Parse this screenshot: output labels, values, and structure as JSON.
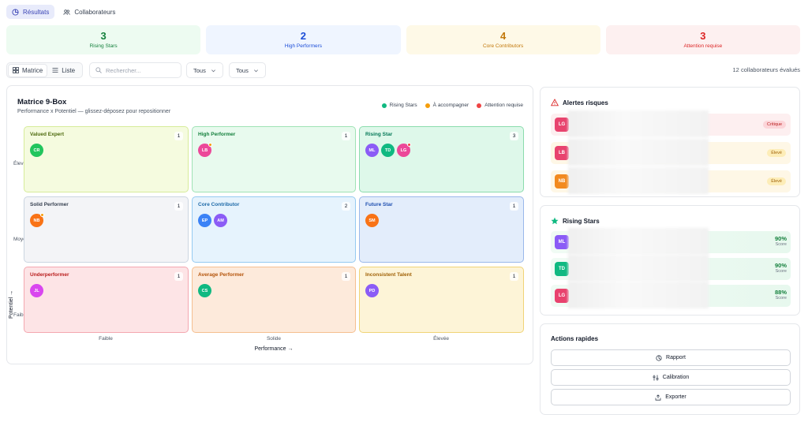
{
  "top_tabs": [
    {
      "label": "Résultats",
      "icon": "chart-icon",
      "active": true
    },
    {
      "label": "Collaborateurs",
      "icon": "users-icon",
      "active": false
    }
  ],
  "stats": [
    {
      "value": "3",
      "label": "Rising Stars",
      "color": "#15803d"
    },
    {
      "value": "2",
      "label": "High Performers",
      "color": "#1d4ed8"
    },
    {
      "value": "4",
      "label": "Core Contributors",
      "color": "#c2780b"
    },
    {
      "value": "3",
      "label": "Attention requise",
      "color": "#dc2626"
    }
  ],
  "toolbar": {
    "view_matrix": "Matrice",
    "view_list": "Liste",
    "search_placeholder": "Rechercher...",
    "filter1": "Tous",
    "filter2": "Tous",
    "count_text": "12 collaborateurs évalués"
  },
  "matrix": {
    "title": "Matrice 9-Box",
    "subtitle": "Performance x Potentiel — glissez-déposez pour repositionner",
    "legend": [
      {
        "label": "Rising Stars",
        "color": "#10b981"
      },
      {
        "label": "À accompagner",
        "color": "#f59e0b"
      },
      {
        "label": "Attention requise",
        "color": "#ef4444"
      }
    ],
    "y_axis_label": "Potentiel →",
    "y_ticks": [
      "Élevé",
      "Moyen",
      "Faible"
    ],
    "x_axis_label": "Performance →",
    "x_ticks": [
      "Faible",
      "Solide",
      "Élevée"
    ],
    "cells": [
      {
        "name": "Valued Expert",
        "count": "1",
        "style": "c-lime",
        "avatars": [
          {
            "initials": "CR",
            "color": "#22c55e"
          }
        ]
      },
      {
        "name": "High Performer",
        "count": "1",
        "style": "c-green",
        "avatars": [
          {
            "initials": "LB",
            "color": "#ec4899",
            "dot": "#f59e0b"
          }
        ]
      },
      {
        "name": "Rising Star",
        "count": "3",
        "style": "c-mint",
        "avatars": [
          {
            "initials": "ML",
            "color": "#8b5cf6"
          },
          {
            "initials": "TD",
            "color": "#10b981"
          },
          {
            "initials": "LG",
            "color": "#ec4899",
            "dot": "#ef4444"
          }
        ]
      },
      {
        "name": "Solid Performer",
        "count": "1",
        "style": "c-gray",
        "avatars": [
          {
            "initials": "NB",
            "color": "#f97316",
            "dot": "#f59e0b"
          }
        ]
      },
      {
        "name": "Core Contributor",
        "count": "2",
        "style": "c-sky",
        "avatars": [
          {
            "initials": "EP",
            "color": "#3b82f6"
          },
          {
            "initials": "AM",
            "color": "#8b5cf6"
          }
        ]
      },
      {
        "name": "Future Star",
        "count": "1",
        "style": "c-blue",
        "avatars": [
          {
            "initials": "SM",
            "color": "#f97316"
          }
        ]
      },
      {
        "name": "Underperformer",
        "count": "1",
        "style": "c-rose",
        "avatars": [
          {
            "initials": "JL",
            "color": "#d946ef"
          }
        ]
      },
      {
        "name": "Average Performer",
        "count": "1",
        "style": "c-peach",
        "avatars": [
          {
            "initials": "CS",
            "color": "#10b981"
          }
        ]
      },
      {
        "name": "Inconsistent Talent",
        "count": "1",
        "style": "c-amber",
        "avatars": [
          {
            "initials": "PD",
            "color": "#8b5cf6"
          }
        ]
      }
    ]
  },
  "risk_alerts": {
    "title": "Alertes risques",
    "items": [
      {
        "initials": "LG",
        "avatar_color": "#e8436e",
        "badge": "Critique",
        "bg": "#fdeff0",
        "badge_bg": "#fcd5d9",
        "badge_color": "#b91c1c"
      },
      {
        "initials": "LB",
        "avatar_color": "#e8436e",
        "badge": "Élevé",
        "bg": "#fef7e6",
        "badge_bg": "#fdedb8",
        "badge_color": "#a16207"
      },
      {
        "initials": "NB",
        "avatar_color": "#f28a1f",
        "badge": "Élevé",
        "bg": "#fef7e6",
        "badge_bg": "#fdedb8",
        "badge_color": "#a16207"
      }
    ]
  },
  "rising_stars": {
    "title": "Rising Stars",
    "items": [
      {
        "initials": "ML",
        "avatar_color": "#8b5cf6",
        "score": "90%",
        "score_label": "Score"
      },
      {
        "initials": "TD",
        "avatar_color": "#10b981",
        "score": "90%",
        "score_label": "Score"
      },
      {
        "initials": "LG",
        "avatar_color": "#e8436e",
        "score": "88%",
        "score_label": "Score"
      }
    ]
  },
  "quick_actions": {
    "title": "Actions rapides",
    "buttons": [
      {
        "label": "Rapport",
        "icon": "report-icon"
      },
      {
        "label": "Calibration",
        "icon": "calibration-icon"
      },
      {
        "label": "Exporter",
        "icon": "export-icon"
      }
    ]
  }
}
